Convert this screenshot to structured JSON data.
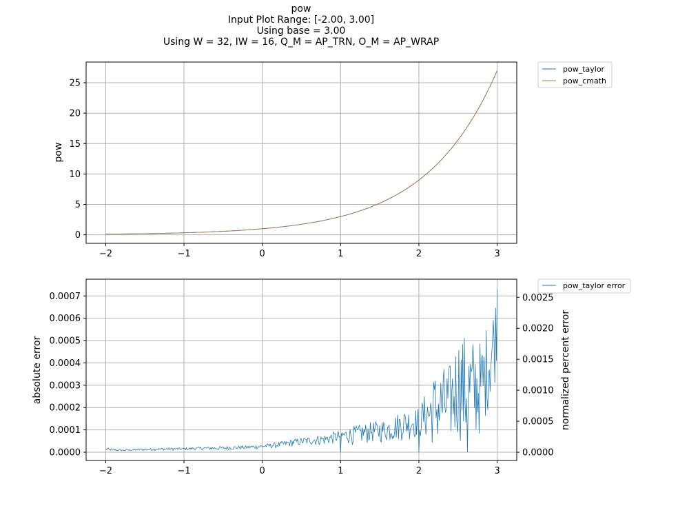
{
  "chart_data": [
    {
      "type": "line",
      "title_lines": [
        "pow",
        "Input Plot Range: [-2.00, 3.00]",
        "Using base = 3.00",
        "Using W = 32, IW = 16, Q_M = AP_TRN, O_M = AP_WRAP"
      ],
      "xlabel": "",
      "ylabel": "pow",
      "xlim": [
        -2.25,
        3.25
      ],
      "ylim": [
        -1.4,
        28.4
      ],
      "xticks": [
        -2,
        -1,
        0,
        1,
        2,
        3
      ],
      "yticks": [
        0,
        5,
        10,
        15,
        20,
        25
      ],
      "grid": true,
      "legend_position": "outside-top-right",
      "function": {
        "kind": "power",
        "base": 3,
        "x_range": [
          -2,
          3
        ]
      },
      "series": [
        {
          "name": "pow_taylor",
          "color": "#1f77b4"
        },
        {
          "name": "pow_cmath",
          "color": "#b5733e"
        }
      ]
    },
    {
      "type": "line",
      "xlabel": "",
      "ylabel": "absolute error",
      "ylabel_right": "normalized percent error",
      "xlim": [
        -2.25,
        3.25
      ],
      "ylim": [
        -3.7e-05,
        0.000775
      ],
      "ylim_right": [
        -0.000133,
        0.002792
      ],
      "xticks": [
        -2,
        -1,
        0,
        1,
        2,
        3
      ],
      "yticks": [
        "0.0000",
        "0.0001",
        "0.0002",
        "0.0003",
        "0.0004",
        "0.0005",
        "0.0006",
        "0.0007"
      ],
      "yticks_right": [
        "0.0000",
        "0.0005",
        "0.0010",
        "0.0015",
        "0.0020",
        "0.0025"
      ],
      "grid": true,
      "legend_position": "outside-top-right",
      "series": [
        {
          "name": "pow_taylor error",
          "color": "#1f77b4",
          "x": [
            -2.0,
            -1.8,
            -1.6,
            -1.4,
            -1.2,
            -1.0,
            -0.8,
            -0.6,
            -0.4,
            -0.2,
            0.0,
            0.2,
            0.4,
            0.6,
            0.8,
            1.0,
            1.2,
            1.4,
            1.6,
            1.8,
            2.0,
            2.2,
            2.4,
            2.5,
            2.6,
            2.8,
            3.0
          ],
          "envelope_high": [
            2e-05,
            1.2e-05,
            1.6e-05,
            1.8e-05,
            2e-05,
            2e-05,
            2.4e-05,
            2.6e-05,
            2.8e-05,
            3e-05,
            3.5e-05,
            4.5e-05,
            6e-05,
            7e-05,
            8e-05,
            0.0001,
            0.00012,
            0.000135,
            0.00015,
            0.00019,
            0.0002,
            0.00036,
            0.0004,
            0.00054,
            0.00053,
            0.0005,
            0.00073
          ],
          "envelope_low": [
            5e-06,
            4e-06,
            5e-06,
            7e-06,
            8e-06,
            8e-06,
            1e-05,
            8e-06,
            1e-05,
            1.2e-05,
            1.5e-05,
            1.8e-05,
            2.5e-05,
            3e-05,
            3e-05,
            4e-05,
            3e-05,
            4e-05,
            4e-05,
            5e-05,
            6e-05,
            3e-05,
            5e-05,
            6e-05,
            2e-05,
            8e-05,
            0.00035
          ]
        }
      ]
    }
  ]
}
